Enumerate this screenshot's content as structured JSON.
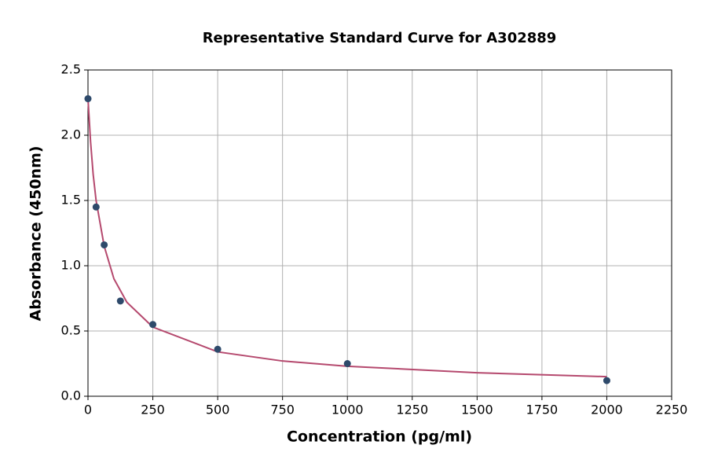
{
  "chart_data": {
    "type": "scatter",
    "title": "Representative Standard Curve for A302889",
    "x_label": "Concentration (pg/ml)",
    "y_label": "Absorbance (450nm)",
    "series": [
      {
        "type": "scatter",
        "color": "#2e4a6b",
        "x": [
          0,
          31.25,
          62.5,
          125,
          250,
          500,
          1000,
          2000
        ],
        "values": [
          2.28,
          1.45,
          1.16,
          0.73,
          0.55,
          0.36,
          0.25,
          0.12
        ]
      },
      {
        "type": "line",
        "color": "#b5496e",
        "x": [
          0,
          10,
          20,
          31.25,
          62.5,
          100,
          150,
          250,
          500,
          750,
          1000,
          1500,
          2000
        ],
        "values": [
          2.28,
          1.95,
          1.7,
          1.5,
          1.15,
          0.9,
          0.72,
          0.53,
          0.34,
          0.27,
          0.23,
          0.18,
          0.15
        ]
      }
    ],
    "xlim": [
      0,
      2250
    ],
    "xticks": [
      0,
      250,
      500,
      750,
      1000,
      1250,
      1500,
      1750,
      2000,
      2250
    ],
    "ylim": [
      0,
      2.5
    ],
    "yticks": [
      {
        "value": 0,
        "label": "0.0"
      },
      {
        "value": 0.5,
        "label": "0.5"
      },
      {
        "value": 1,
        "label": "1.0"
      },
      {
        "value": 1.5,
        "label": "1.5"
      },
      {
        "value": 2,
        "label": "2.0"
      },
      {
        "value": 2.5,
        "label": "2.5"
      }
    ],
    "grid": true
  }
}
